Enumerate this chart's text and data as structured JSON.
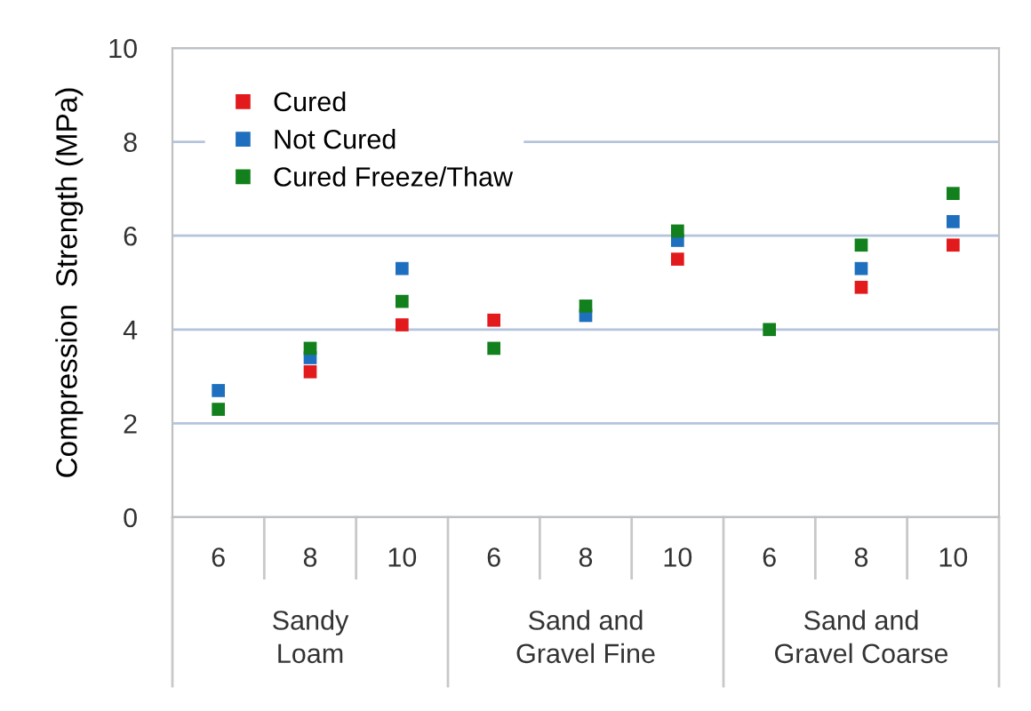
{
  "chart_data": {
    "type": "scatter",
    "ylabel": "Compression  Strength (MPa)",
    "categories": [
      "6",
      "8",
      "10",
      "6",
      "8",
      "10",
      "6",
      "8",
      "10"
    ],
    "annotations": [
      "Sandy\nLoam",
      "Sand and\nGravel Fine",
      "Sand and\nGravel Coarse"
    ],
    "series": [
      {
        "name": "Cured",
        "color": "#e31a1c",
        "values": [
          null,
          3.1,
          4.1,
          4.2,
          null,
          5.5,
          null,
          4.9,
          5.8
        ]
      },
      {
        "name": "Not Cured",
        "color": "#1f6fbf",
        "values": [
          2.7,
          3.4,
          5.3,
          null,
          4.3,
          5.9,
          null,
          5.3,
          6.3
        ]
      },
      {
        "name": "Cured Freeze/Thaw",
        "color": "#12801c",
        "values": [
          2.3,
          3.6,
          4.6,
          3.6,
          4.5,
          6.1,
          4.0,
          5.8,
          6.9
        ]
      }
    ],
    "ylim": [
      0,
      10
    ],
    "yticks": [
      0,
      2,
      4,
      6,
      8,
      10
    ],
    "grid": "y",
    "legend": "top left",
    "marker": "square"
  }
}
